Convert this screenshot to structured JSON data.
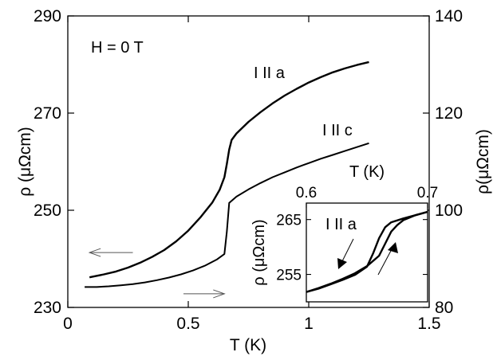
{
  "chart_data": {
    "type": "line",
    "annotation_field": "H = 0 T",
    "xlabel": "T (K)",
    "ylabel_left": "ρ (μΩcm)",
    "ylabel_right": "ρ(μΩcm)",
    "xlim": [
      0,
      1.5
    ],
    "ylim_left": [
      230,
      290
    ],
    "ylim_right": [
      80,
      140
    ],
    "x_ticks": [
      {
        "value": 0,
        "label": "0"
      },
      {
        "value": 0.5,
        "label": "0.5"
      },
      {
        "value": 1,
        "label": "1"
      },
      {
        "value": 1.5,
        "label": "1.5"
      }
    ],
    "y_ticks_left": [
      {
        "value": 230,
        "label": "230"
      },
      {
        "value": 250,
        "label": "250"
      },
      {
        "value": 270,
        "label": "270"
      },
      {
        "value": 290,
        "label": "290"
      }
    ],
    "y_ticks_right": [
      {
        "value": 80,
        "label": "80"
      },
      {
        "value": 100,
        "label": "100"
      },
      {
        "value": 120,
        "label": "120"
      },
      {
        "value": 140,
        "label": "140"
      }
    ],
    "series": [
      {
        "name": "I II a",
        "axis": "left",
        "x": [
          0.09,
          0.15,
          0.2,
          0.25,
          0.3,
          0.35,
          0.4,
          0.45,
          0.5,
          0.55,
          0.6,
          0.63,
          0.65,
          0.66,
          0.67,
          0.68,
          0.7,
          0.75,
          0.8,
          0.85,
          0.9,
          0.95,
          1.0,
          1.05,
          1.1,
          1.15,
          1.2,
          1.25
        ],
        "y": [
          236.2,
          236.8,
          237.4,
          238.2,
          239.2,
          240.4,
          241.8,
          243.6,
          245.8,
          248.5,
          251.6,
          254.2,
          256.8,
          259.5,
          262.5,
          264.5,
          265.8,
          268.2,
          270.2,
          272.0,
          273.6,
          275.0,
          276.3,
          277.4,
          278.4,
          279.2,
          279.9,
          280.5
        ]
      },
      {
        "name": "I II c",
        "axis": "right",
        "x": [
          0.07,
          0.12,
          0.17,
          0.22,
          0.27,
          0.32,
          0.37,
          0.42,
          0.47,
          0.52,
          0.57,
          0.62,
          0.65,
          0.66,
          0.67,
          0.7,
          0.75,
          0.8,
          0.85,
          0.9,
          0.95,
          1.0,
          1.05,
          1.1,
          1.15,
          1.2,
          1.25
        ],
        "y": [
          84.2,
          84.2,
          84.35,
          84.55,
          84.8,
          85.15,
          85.6,
          86.15,
          86.8,
          87.6,
          88.6,
          89.9,
          91.0,
          95.5,
          101.5,
          102.8,
          104.3,
          105.6,
          106.8,
          107.8,
          108.8,
          109.7,
          110.6,
          111.4,
          112.2,
          113.0,
          113.8
        ]
      }
    ],
    "arrows": [
      {
        "direction": "left",
        "axis": "left",
        "text": ""
      },
      {
        "direction": "right",
        "axis": "right",
        "text": ""
      }
    ],
    "inset": {
      "series_label": "I  II a",
      "xlabel": "T (K)",
      "ylabel": "ρ (μΩcm)",
      "xlim": [
        0.6,
        0.7
      ],
      "ylim": [
        250,
        268
      ],
      "x_ticks": [
        {
          "value": 0.6,
          "label": "0.6"
        },
        {
          "value": 0.7,
          "label": "0.7"
        }
      ],
      "y_ticks": [
        {
          "value": 255,
          "label": "255"
        },
        {
          "value": 265,
          "label": "265"
        }
      ],
      "branches": [
        {
          "name": "cooling",
          "x": [
            0.6,
            0.61,
            0.62,
            0.63,
            0.64,
            0.65,
            0.655,
            0.66,
            0.665,
            0.67,
            0.68,
            0.69,
            0.7
          ],
          "y": [
            251.8,
            252.4,
            253.2,
            254.0,
            254.9,
            256.4,
            258.8,
            261.6,
            263.6,
            264.5,
            265.2,
            265.8,
            266.4
          ]
        },
        {
          "name": "warming",
          "x": [
            0.6,
            0.61,
            0.62,
            0.63,
            0.64,
            0.65,
            0.66,
            0.665,
            0.67,
            0.675,
            0.68,
            0.69,
            0.7
          ],
          "y": [
            251.8,
            252.5,
            253.3,
            254.2,
            255.2,
            256.5,
            258.4,
            260.6,
            262.8,
            264.0,
            264.9,
            265.8,
            266.4
          ]
        }
      ]
    }
  }
}
